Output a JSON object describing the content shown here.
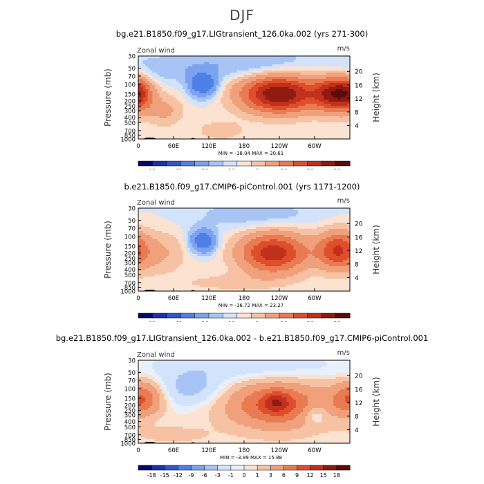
{
  "title": "DJF",
  "colors": {
    "cbar1": [
      "#08086b",
      "#1d2fb0",
      "#2e56d0",
      "#4f7fe6",
      "#7aa2ee",
      "#a8c4f5",
      "#d3e3fb",
      "#fbe2d1",
      "#f6c2a3",
      "#f0a07a",
      "#ea7a52",
      "#df4e2b",
      "#c0301c",
      "#8e1a10",
      "#5c0a08"
    ],
    "cbar3": [
      "#08086b",
      "#1d2fb0",
      "#2e56d0",
      "#4f7fe6",
      "#7aa2ee",
      "#a8c4f5",
      "#d3e3fb",
      "#e8f0fd",
      "#fbe2d1",
      "#f6c2a3",
      "#f0a07a",
      "#ea7a52",
      "#df4e2b",
      "#c0301c",
      "#8e1a10",
      "#5c0a08"
    ]
  },
  "chart_data": [
    {
      "type": "heatmap",
      "title": "bg.e21.B1850.f09_g17.LIGtransient_126.0ka.002 (yrs 271-300)",
      "left_label": "Zonal wind",
      "right_label": "m/s",
      "ylabel": "Pressure (mb)",
      "ylabel_right": "Height (km)",
      "x_ticks": [
        "0",
        "60E",
        "120E",
        "180",
        "120W",
        "60W"
      ],
      "y_ticks": [
        "30",
        "50",
        "70",
        "100",
        "150",
        "200",
        "250",
        "300",
        "400",
        "500",
        "700",
        "850",
        "1000"
      ],
      "y_right_ticks": [
        "20",
        "16",
        "12",
        "8",
        "4"
      ],
      "stats": "MIN = -18.04   MAX =  30.61",
      "colorbar_labels": [
        "-60",
        "-40",
        "-20",
        "-10",
        "0",
        "10",
        "20",
        "30"
      ],
      "colorbar_scale": "cbar1",
      "min": -18.04,
      "max": 30.61,
      "fields": [
        {
          "lon": 0,
          "p": 150,
          "sx": 18,
          "sy": 0.5,
          "a": 18
        },
        {
          "lon": 45,
          "p": 300,
          "sx": 22,
          "sy": 0.45,
          "a": 6
        },
        {
          "lon": 110,
          "p": 100,
          "sx": 16,
          "sy": 0.35,
          "a": -18
        },
        {
          "lon": 140,
          "p": 700,
          "sx": 25,
          "sy": 0.25,
          "a": 5
        },
        {
          "lon": 240,
          "p": 150,
          "sx": 45,
          "sy": 0.55,
          "a": 30
        },
        {
          "lon": 330,
          "p": 150,
          "sx": 22,
          "sy": 0.5,
          "a": 22
        },
        {
          "lon": 200,
          "p": 40,
          "sx": 60,
          "sy": 0.4,
          "a": -5
        },
        {
          "lon": 60,
          "p": 50,
          "sx": 70,
          "sy": 0.4,
          "a": -4
        }
      ]
    },
    {
      "type": "heatmap",
      "title": "b.e21.B1850.f09_g17.CMIP6-piControl.001 (yrs 1171-1200)",
      "left_label": "Zonal wind",
      "right_label": "m/s",
      "ylabel": "Pressure (mb)",
      "ylabel_right": "Height (km)",
      "x_ticks": [
        "0",
        "60E",
        "120E",
        "180",
        "120W",
        "60W"
      ],
      "y_ticks": [
        "30",
        "50",
        "70",
        "100",
        "150",
        "200",
        "250",
        "300",
        "400",
        "500",
        "700",
        "850",
        "1000"
      ],
      "y_right_ticks": [
        "20",
        "16",
        "12",
        "8",
        "4"
      ],
      "stats": "MIN = -16.72   MAX =  23.27",
      "colorbar_labels": [
        "-60",
        "-40",
        "-20",
        "-10",
        "0",
        "10",
        "20",
        "30"
      ],
      "colorbar_scale": "cbar1",
      "min": -16.72,
      "max": 23.27,
      "fields": [
        {
          "lon": 40,
          "p": 200,
          "sx": 30,
          "sy": 0.6,
          "a": 5
        },
        {
          "lon": 110,
          "p": 120,
          "sx": 15,
          "sy": 0.35,
          "a": -16
        },
        {
          "lon": 230,
          "p": 200,
          "sx": 40,
          "sy": 0.6,
          "a": 23
        },
        {
          "lon": 340,
          "p": 180,
          "sx": 25,
          "sy": 0.55,
          "a": 20
        },
        {
          "lon": 150,
          "p": 700,
          "sx": 60,
          "sy": 0.25,
          "a": 3
        },
        {
          "lon": 200,
          "p": 40,
          "sx": 70,
          "sy": 0.4,
          "a": -4
        }
      ]
    },
    {
      "type": "heatmap",
      "title": "bg.e21.B1850.f09_g17.LIGtransient_126.0ka.002 - b.e21.B1850.f09_g17.CMIP6-piControl.001",
      "left_label": "Zonal wind",
      "right_label": "m/s",
      "ylabel": "Pressure (mb)",
      "ylabel_right": "Height (km)",
      "x_ticks": [
        "0",
        "60E",
        "120E",
        "180",
        "120W",
        "60W"
      ],
      "y_ticks": [
        "30",
        "50",
        "70",
        "100",
        "150",
        "200",
        "250",
        "300",
        "400",
        "500",
        "700",
        "850",
        "1000"
      ],
      "y_right_ticks": [
        "20",
        "16",
        "12",
        "8",
        "4"
      ],
      "stats": "MIN =  -3.89   MAX =  15.88",
      "colorbar_labels": [
        "-18",
        "-15",
        "-12",
        "-9",
        "-6",
        "-3",
        "-1",
        "0",
        "1",
        "3",
        "6",
        "9",
        "12",
        "15",
        "18"
      ],
      "colorbar_scale": "cbar3",
      "min": -3.89,
      "max": 15.88,
      "fields": [
        {
          "lon": 5,
          "p": 150,
          "sx": 25,
          "sy": 0.5,
          "a": 9
        },
        {
          "lon": 90,
          "p": 100,
          "sx": 40,
          "sy": 0.5,
          "a": -4
        },
        {
          "lon": 235,
          "p": 200,
          "sx": 60,
          "sy": 0.7,
          "a": 10
        },
        {
          "lon": 235,
          "p": 180,
          "sx": 15,
          "sy": 0.3,
          "a": 6
        },
        {
          "lon": 300,
          "p": 300,
          "sx": 15,
          "sy": 0.3,
          "a": -4
        },
        {
          "lon": 60,
          "p": 700,
          "sx": 40,
          "sy": 0.25,
          "a": 2
        },
        {
          "lon": 180,
          "p": 40,
          "sx": 120,
          "sy": 0.45,
          "a": -2.5
        }
      ]
    }
  ]
}
